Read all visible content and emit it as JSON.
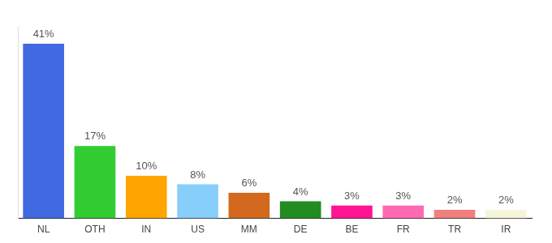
{
  "chart_data": {
    "type": "bar",
    "categories": [
      "NL",
      "OTH",
      "IN",
      "US",
      "MM",
      "DE",
      "BE",
      "FR",
      "TR",
      "IR"
    ],
    "values": [
      41,
      17,
      10,
      8,
      6,
      4,
      3,
      3,
      2,
      2
    ],
    "value_labels": [
      "41%",
      "17%",
      "10%",
      "8%",
      "6%",
      "4%",
      "3%",
      "3%",
      "2%",
      "2%"
    ],
    "colors": [
      "#4169e1",
      "#32cd32",
      "#ffa500",
      "#87cefa",
      "#d2691e",
      "#228b22",
      "#ff1493",
      "#ff69b4",
      "#f08080",
      "#f5f5dc"
    ],
    "ylim": [
      0,
      45
    ],
    "grid": false,
    "data_labels": true,
    "tick_labels": "x"
  }
}
